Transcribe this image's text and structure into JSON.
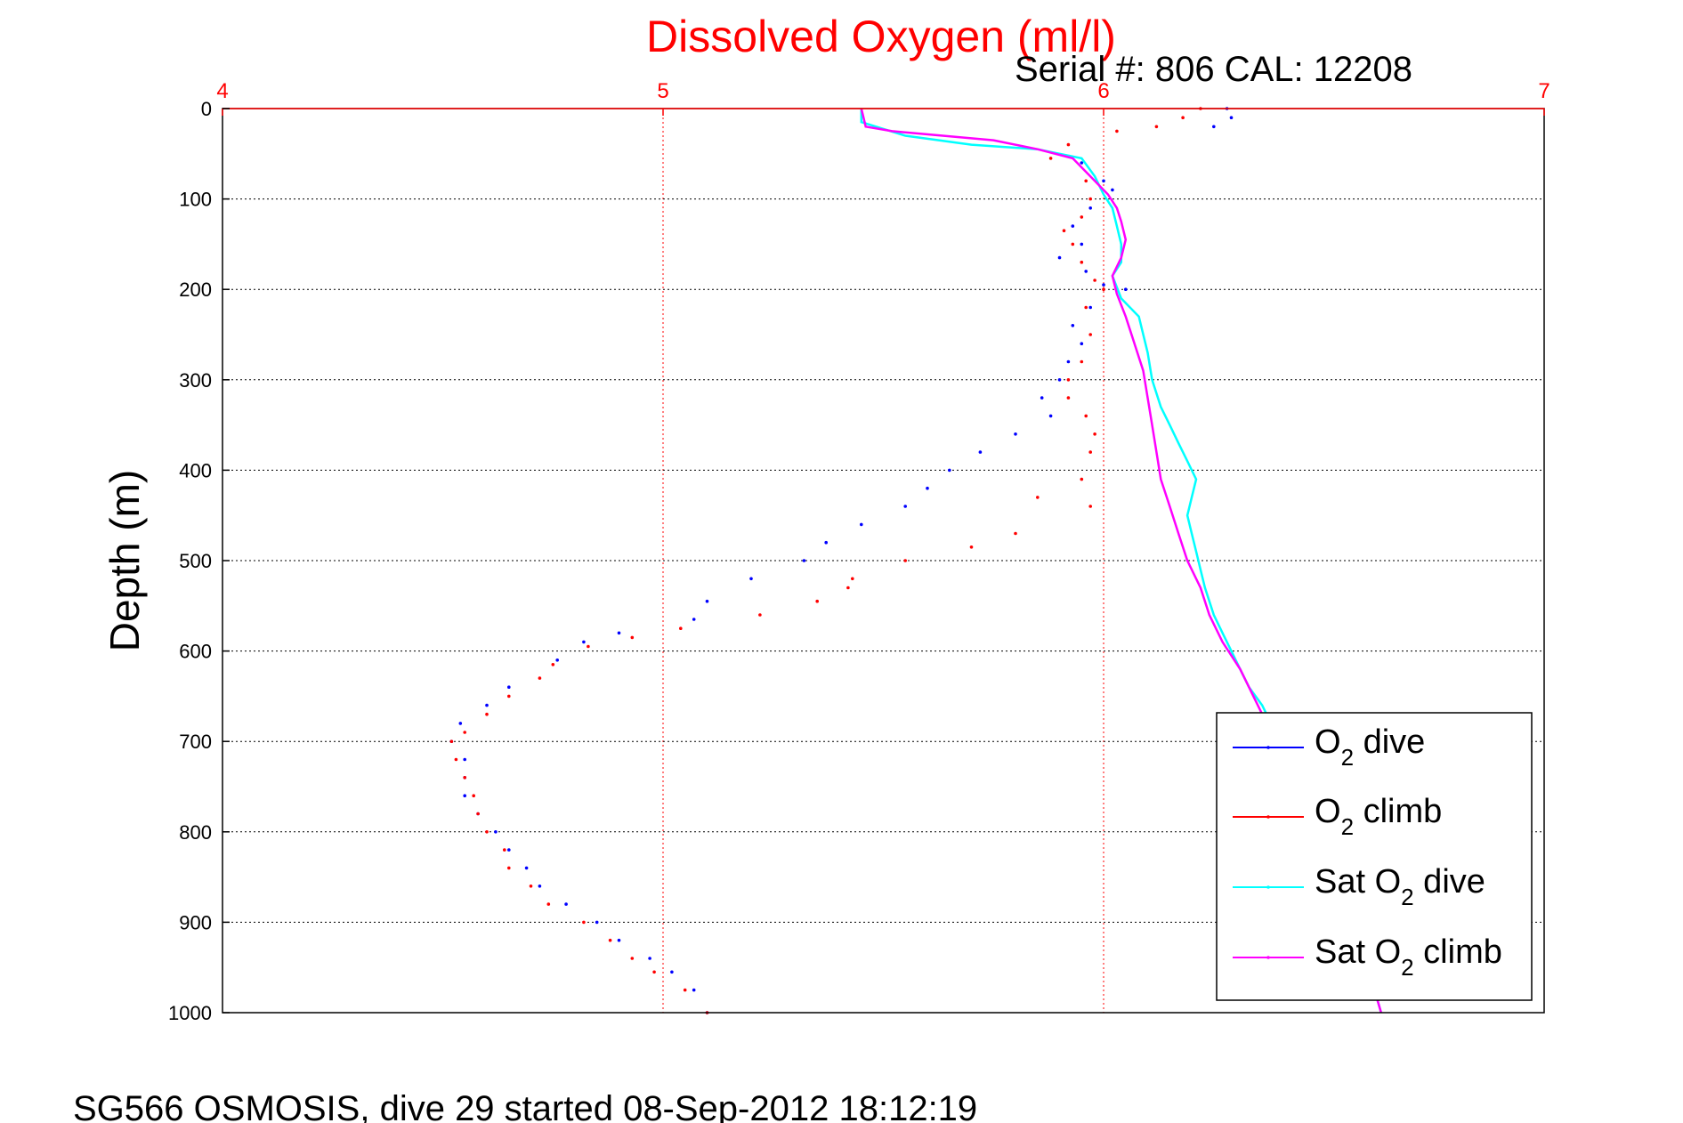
{
  "chart_data": {
    "type": "scatter",
    "title": "Dissolved Oxygen (ml/l)",
    "subtitle": "Serial #: 806  CAL: 12208",
    "xlabel": "",
    "ylabel": "Depth (m)",
    "footer": "SG566 OSMOSIS, dive 29 started 08-Sep-2012 18:12:19",
    "xlim": [
      4,
      7
    ],
    "ylim": [
      1000,
      0
    ],
    "x_ticks": [
      4,
      5,
      6,
      7
    ],
    "y_ticks": [
      0,
      100,
      200,
      300,
      400,
      500,
      600,
      700,
      800,
      900,
      1000
    ],
    "x_tick_labels": [
      "4",
      "5",
      "6",
      "7"
    ],
    "y_tick_labels": [
      "0",
      "100",
      "200",
      "300",
      "400",
      "500",
      "600",
      "700",
      "800",
      "900",
      "1000"
    ],
    "grid": true,
    "legend_position": "bottom-right",
    "series": [
      {
        "name": "O2 dive",
        "legend_parts": [
          "O",
          "2",
          " dive"
        ],
        "color": "#0000ff",
        "style": "dots",
        "points": [
          [
            6.28,
            0
          ],
          [
            6.29,
            10
          ],
          [
            6.25,
            20
          ],
          [
            5.95,
            60
          ],
          [
            6.0,
            80
          ],
          [
            6.02,
            90
          ],
          [
            5.97,
            110
          ],
          [
            5.93,
            130
          ],
          [
            5.95,
            150
          ],
          [
            5.9,
            165
          ],
          [
            5.96,
            180
          ],
          [
            6.0,
            195
          ],
          [
            6.05,
            200
          ],
          [
            5.97,
            220
          ],
          [
            5.93,
            240
          ],
          [
            5.95,
            260
          ],
          [
            5.92,
            280
          ],
          [
            5.9,
            300
          ],
          [
            5.86,
            320
          ],
          [
            5.88,
            340
          ],
          [
            5.8,
            360
          ],
          [
            5.72,
            380
          ],
          [
            5.65,
            400
          ],
          [
            5.6,
            420
          ],
          [
            5.55,
            440
          ],
          [
            5.45,
            460
          ],
          [
            5.37,
            480
          ],
          [
            5.32,
            500
          ],
          [
            5.2,
            520
          ],
          [
            5.1,
            545
          ],
          [
            5.07,
            565
          ],
          [
            4.9,
            580
          ],
          [
            4.82,
            590
          ],
          [
            4.76,
            610
          ],
          [
            4.65,
            640
          ],
          [
            4.6,
            660
          ],
          [
            4.54,
            680
          ],
          [
            4.52,
            700
          ],
          [
            4.55,
            720
          ],
          [
            4.55,
            740
          ],
          [
            4.55,
            760
          ],
          [
            4.58,
            780
          ],
          [
            4.62,
            800
          ],
          [
            4.65,
            820
          ],
          [
            4.69,
            840
          ],
          [
            4.72,
            860
          ],
          [
            4.78,
            880
          ],
          [
            4.85,
            900
          ],
          [
            4.9,
            920
          ],
          [
            4.97,
            940
          ],
          [
            5.02,
            955
          ],
          [
            5.07,
            975
          ],
          [
            5.1,
            1000
          ]
        ]
      },
      {
        "name": "O2 climb",
        "legend_parts": [
          "O",
          "2",
          " climb"
        ],
        "color": "#ff0000",
        "style": "dots",
        "points": [
          [
            6.22,
            0
          ],
          [
            6.18,
            10
          ],
          [
            6.12,
            20
          ],
          [
            6.03,
            25
          ],
          [
            5.92,
            40
          ],
          [
            5.88,
            55
          ],
          [
            5.96,
            80
          ],
          [
            5.97,
            100
          ],
          [
            5.95,
            120
          ],
          [
            5.91,
            135
          ],
          [
            5.93,
            150
          ],
          [
            5.95,
            170
          ],
          [
            5.98,
            190
          ],
          [
            6.0,
            200
          ],
          [
            5.96,
            220
          ],
          [
            5.97,
            250
          ],
          [
            5.95,
            280
          ],
          [
            5.92,
            300
          ],
          [
            5.92,
            320
          ],
          [
            5.96,
            340
          ],
          [
            5.98,
            360
          ],
          [
            5.97,
            380
          ],
          [
            5.95,
            410
          ],
          [
            5.85,
            430
          ],
          [
            5.97,
            440
          ],
          [
            5.8,
            470
          ],
          [
            5.7,
            485
          ],
          [
            5.55,
            500
          ],
          [
            5.43,
            520
          ],
          [
            5.42,
            530
          ],
          [
            5.35,
            545
          ],
          [
            5.22,
            560
          ],
          [
            5.04,
            575
          ],
          [
            4.93,
            585
          ],
          [
            4.83,
            595
          ],
          [
            4.75,
            615
          ],
          [
            4.72,
            630
          ],
          [
            4.65,
            650
          ],
          [
            4.6,
            670
          ],
          [
            4.55,
            690
          ],
          [
            4.52,
            700
          ],
          [
            4.53,
            720
          ],
          [
            4.55,
            740
          ],
          [
            4.57,
            760
          ],
          [
            4.58,
            780
          ],
          [
            4.6,
            800
          ],
          [
            4.64,
            820
          ],
          [
            4.65,
            840
          ],
          [
            4.7,
            860
          ],
          [
            4.74,
            880
          ],
          [
            4.82,
            900
          ],
          [
            4.88,
            920
          ],
          [
            4.93,
            940
          ],
          [
            4.98,
            955
          ],
          [
            5.05,
            975
          ],
          [
            5.1,
            1000
          ]
        ]
      },
      {
        "name": "Sat O2 dive",
        "legend_parts": [
          "Sat O",
          "2",
          " dive"
        ],
        "color": "#00ffff",
        "style": "line",
        "points": [
          [
            5.45,
            0
          ],
          [
            5.45,
            15
          ],
          [
            5.55,
            30
          ],
          [
            5.7,
            40
          ],
          [
            5.85,
            45
          ],
          [
            5.95,
            55
          ],
          [
            5.98,
            75
          ],
          [
            6.0,
            95
          ],
          [
            6.02,
            110
          ],
          [
            6.03,
            130
          ],
          [
            6.04,
            150
          ],
          [
            6.04,
            170
          ],
          [
            6.02,
            185
          ],
          [
            6.04,
            210
          ],
          [
            6.08,
            230
          ],
          [
            6.1,
            270
          ],
          [
            6.11,
            300
          ],
          [
            6.13,
            330
          ],
          [
            6.15,
            350
          ],
          [
            6.17,
            370
          ],
          [
            6.19,
            390
          ],
          [
            6.21,
            410
          ],
          [
            6.2,
            430
          ],
          [
            6.19,
            450
          ],
          [
            6.2,
            470
          ],
          [
            6.21,
            490
          ],
          [
            6.22,
            510
          ],
          [
            6.23,
            530
          ],
          [
            6.25,
            560
          ],
          [
            6.27,
            580
          ],
          [
            6.29,
            600
          ],
          [
            6.31,
            620
          ],
          [
            6.33,
            640
          ],
          [
            6.36,
            660
          ],
          [
            6.38,
            680
          ],
          [
            6.4,
            700
          ],
          [
            6.43,
            740
          ],
          [
            6.46,
            780
          ],
          [
            6.5,
            820
          ],
          [
            6.53,
            860
          ],
          [
            6.56,
            900
          ],
          [
            6.6,
            950
          ],
          [
            6.63,
            1000
          ]
        ]
      },
      {
        "name": "Sat O2 climb",
        "legend_parts": [
          "Sat O",
          "2",
          " climb"
        ],
        "color": "#ff00ff",
        "style": "line",
        "points": [
          [
            5.45,
            0
          ],
          [
            5.46,
            20
          ],
          [
            5.52,
            25
          ],
          [
            5.75,
            35
          ],
          [
            5.85,
            45
          ],
          [
            5.93,
            55
          ],
          [
            5.97,
            75
          ],
          [
            6.01,
            95
          ],
          [
            6.03,
            110
          ],
          [
            6.04,
            125
          ],
          [
            6.05,
            145
          ],
          [
            6.04,
            165
          ],
          [
            6.02,
            185
          ],
          [
            6.03,
            205
          ],
          [
            6.05,
            230
          ],
          [
            6.07,
            260
          ],
          [
            6.09,
            290
          ],
          [
            6.1,
            320
          ],
          [
            6.11,
            350
          ],
          [
            6.12,
            380
          ],
          [
            6.13,
            410
          ],
          [
            6.15,
            440
          ],
          [
            6.17,
            470
          ],
          [
            6.19,
            500
          ],
          [
            6.22,
            530
          ],
          [
            6.24,
            560
          ],
          [
            6.27,
            590
          ],
          [
            6.31,
            620
          ],
          [
            6.34,
            650
          ],
          [
            6.37,
            680
          ],
          [
            6.4,
            700
          ],
          [
            6.43,
            740
          ],
          [
            6.46,
            780
          ],
          [
            6.5,
            820
          ],
          [
            6.53,
            860
          ],
          [
            6.56,
            900
          ],
          [
            6.6,
            950
          ],
          [
            6.63,
            1000
          ]
        ]
      }
    ]
  }
}
